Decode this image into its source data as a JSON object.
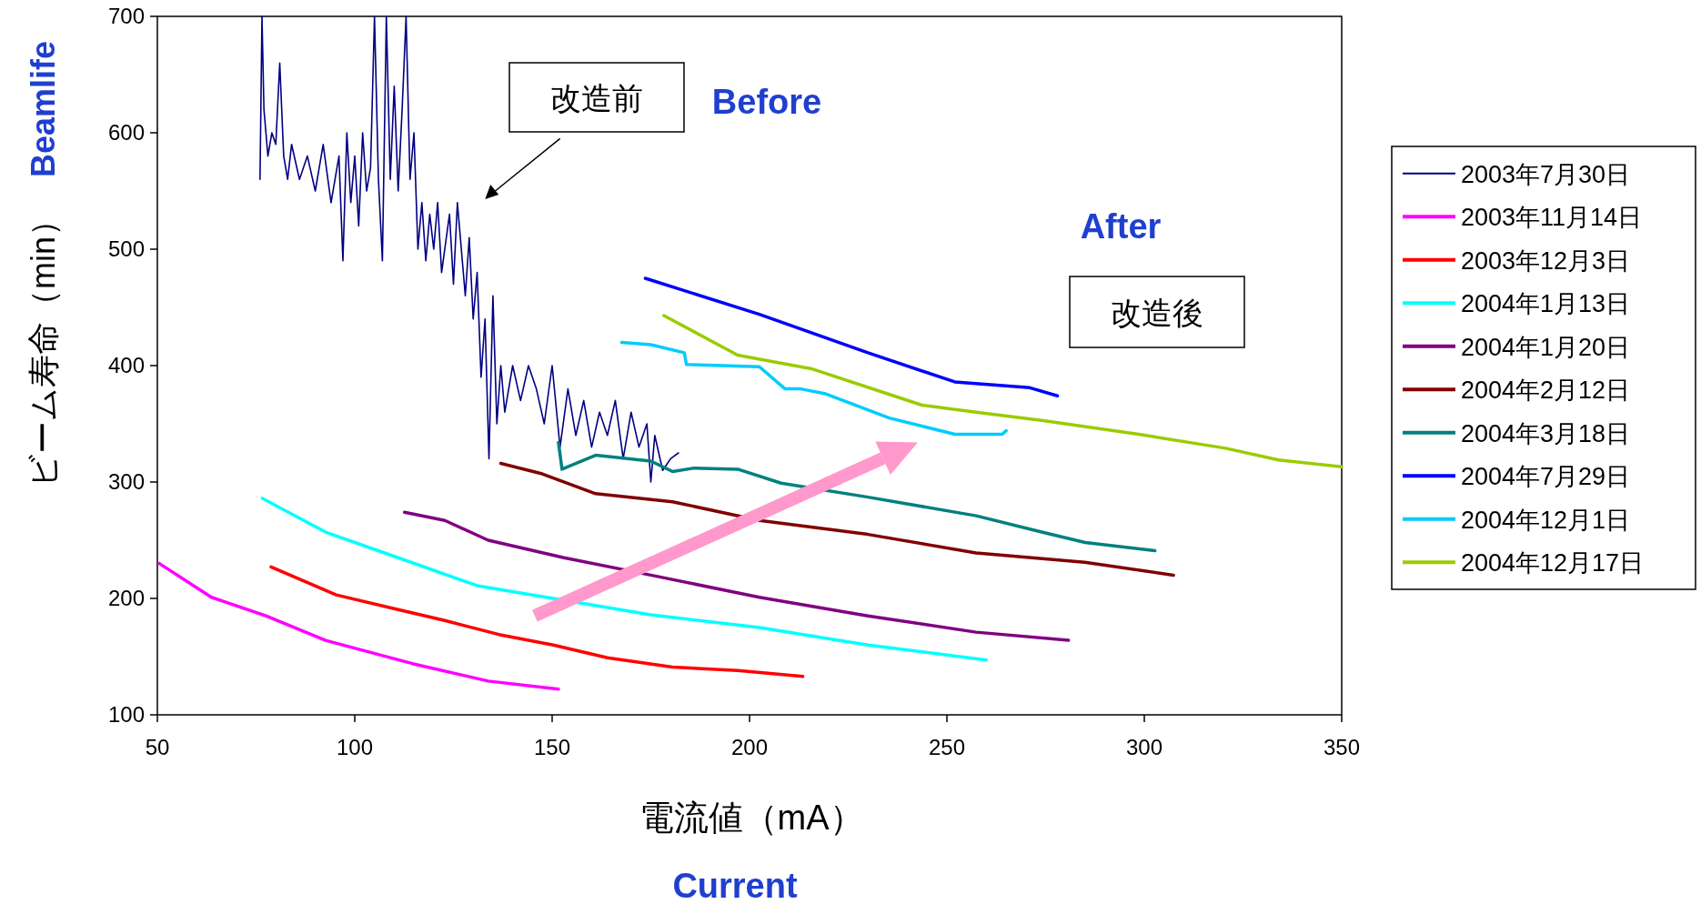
{
  "chart_data": {
    "type": "line",
    "xlabel": "電流値（mA）",
    "ylabel": "ビーム寿命（min）",
    "xlim": [
      50,
      350
    ],
    "ylim": [
      100,
      700
    ],
    "xticks": [
      50,
      100,
      150,
      200,
      250,
      300,
      350
    ],
    "yticks": [
      100,
      200,
      300,
      400,
      500,
      600,
      700
    ],
    "grid": false,
    "legend": "right",
    "marker": "none",
    "line_style": "solid",
    "annotations": [
      "改造前",
      "Before",
      "After",
      "改造後",
      "Beamlife",
      "Current"
    ],
    "series": [
      {
        "name": "2003年7月30日",
        "color": "#000080",
        "x": [
          76,
          76.5,
          77,
          78,
          79,
          80,
          81,
          82,
          83,
          84,
          86,
          88,
          90,
          92,
          94,
          96,
          97,
          98,
          99,
          100,
          101,
          102,
          103,
          104,
          105,
          106,
          107,
          108,
          109,
          110,
          111,
          112,
          113,
          114,
          115,
          116,
          117,
          118,
          119,
          120,
          121,
          122,
          124,
          125,
          126,
          128,
          129,
          130,
          131,
          132,
          133,
          134,
          135,
          136,
          137,
          138,
          140,
          142,
          144,
          146,
          148,
          150,
          152,
          154,
          156,
          158,
          160,
          162,
          164,
          166,
          168,
          170,
          172,
          174,
          175,
          176,
          178,
          180,
          182
        ],
        "values": [
          560,
          700,
          620,
          580,
          600,
          590,
          660,
          580,
          560,
          590,
          560,
          580,
          550,
          590,
          540,
          580,
          490,
          600,
          540,
          580,
          520,
          600,
          550,
          570,
          700,
          560,
          490,
          700,
          560,
          640,
          550,
          620,
          700,
          560,
          600,
          500,
          540,
          490,
          530,
          500,
          540,
          480,
          530,
          470,
          540,
          460,
          510,
          440,
          480,
          390,
          440,
          320,
          460,
          350,
          400,
          360,
          400,
          370,
          400,
          380,
          350,
          400,
          330,
          380,
          340,
          370,
          330,
          360,
          340,
          370,
          320,
          360,
          330,
          350,
          300,
          340,
          310,
          320,
          325
        ]
      },
      {
        "name": "2003年11月14日",
        "color": "#ff00ff",
        "x": [
          50.5,
          63.7,
          77.5,
          92.6,
          114.6,
          133.8,
          151.6
        ],
        "values": [
          230,
          201,
          185,
          164,
          144,
          129,
          122
        ]
      },
      {
        "name": "2003年12月3日",
        "color": "#ff0000",
        "x": [
          78.8,
          95.3,
          109,
          122.8,
          136.5,
          150.3,
          164,
          180.5,
          197,
          213.5
        ],
        "values": [
          227,
          203,
          192,
          181,
          169,
          160,
          149,
          141,
          138,
          133
        ]
      },
      {
        "name": "2004年1月13日",
        "color": "#00ffff",
        "x": [
          76.6,
          92.6,
          111.8,
          131,
          175,
          202.5,
          230,
          260
        ],
        "values": [
          286,
          257,
          234,
          211,
          186,
          175,
          160,
          147
        ]
      },
      {
        "name": "2004年1月20日",
        "color": "#800080",
        "x": [
          112.6,
          122.8,
          133.8,
          153,
          175,
          202.5,
          230,
          257.4,
          280.8
        ],
        "values": [
          274,
          267,
          250,
          235,
          220,
          201,
          185,
          171,
          164
        ]
      },
      {
        "name": "2004年2月12日",
        "color": "#800000",
        "x": [
          137,
          147.5,
          161,
          180.5,
          202.5,
          230,
          257.4,
          284.9,
          307.4
        ],
        "values": [
          316,
          307,
          290,
          283,
          267,
          255,
          239,
          231,
          220
        ]
      },
      {
        "name": "2004年3月18日",
        "color": "#008080",
        "x": [
          151.6,
          152.5,
          161,
          175,
          180.5,
          186,
          197,
          208,
          230,
          257.4,
          274,
          285,
          302.7
        ],
        "values": [
          334,
          311,
          323,
          318,
          309,
          312,
          311,
          299,
          287,
          271,
          257,
          248,
          241
        ]
      },
      {
        "name": "2004年7月29日",
        "color": "#0000ff",
        "x": [
          173.6,
          202.5,
          230,
          252,
          271,
          278
        ],
        "values": [
          475,
          444,
          411,
          386,
          381,
          374
        ]
      },
      {
        "name": "2004年12月1日",
        "color": "#00ccff",
        "x": [
          167.6,
          175,
          183.5,
          184,
          202.5,
          209,
          213,
          219,
          235.4,
          252,
          264,
          265
        ],
        "values": [
          420,
          418,
          411,
          401,
          399,
          380,
          380,
          376,
          355,
          341,
          341,
          344
        ]
      },
      {
        "name": "2004年12月17日",
        "color": "#99cc00",
        "x": [
          178.3,
          197,
          216,
          243.7,
          257.4,
          274,
          298.6,
          320.6,
          334,
          350
        ],
        "values": [
          443,
          409,
          397,
          366,
          360,
          353,
          341,
          329,
          319,
          313
        ]
      }
    ]
  }
}
